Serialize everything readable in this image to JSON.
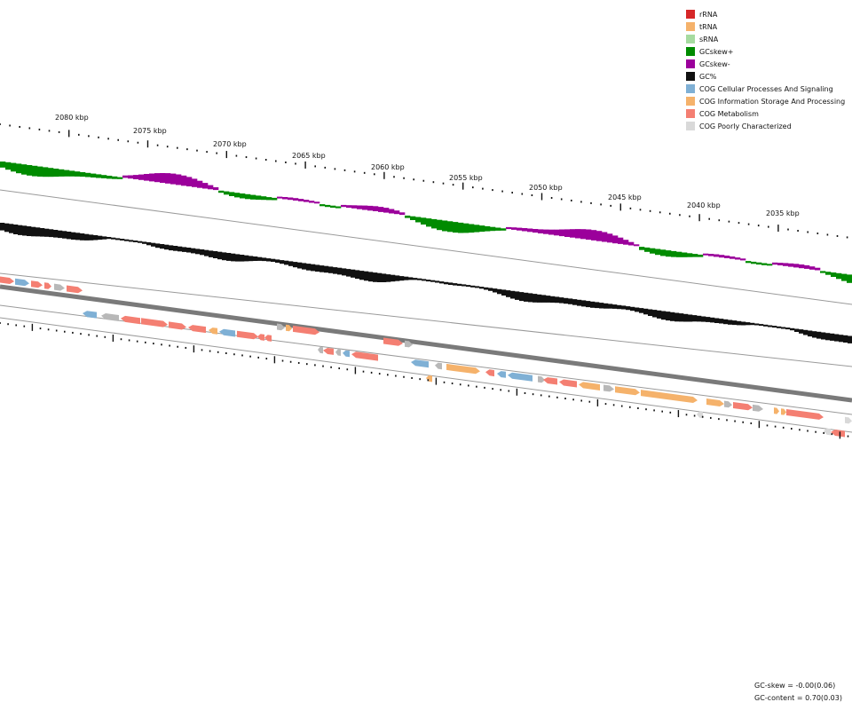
{
  "legend": [
    {
      "label": "rRNA",
      "color": "#d62728"
    },
    {
      "label": "tRNA",
      "color": "#f5b26b"
    },
    {
      "label": "sRNA",
      "color": "#a6dba0"
    },
    {
      "label": "GCskew+",
      "color": "#008b00"
    },
    {
      "label": "GCskew-",
      "color": "#9b009b"
    },
    {
      "label": "GC%",
      "color": "#111111"
    },
    {
      "label": "COG Cellular Processes And Signaling",
      "color": "#7fb0d5"
    },
    {
      "label": "COG Information Storage And Processing",
      "color": "#f5b26b"
    },
    {
      "label": "COG Metabolism",
      "color": "#f47f72"
    },
    {
      "label": "COG Poorly Characterized",
      "color": "#d9d9d9"
    }
  ],
  "ticks": [
    {
      "label": "2080 kbp"
    },
    {
      "label": "2075 kbp"
    },
    {
      "label": "2070 kbp"
    },
    {
      "label": "2065 kbp"
    },
    {
      "label": "2060 kbp"
    },
    {
      "label": "2055 kbp"
    },
    {
      "label": "2050 kbp"
    },
    {
      "label": "2045 kbp"
    },
    {
      "label": "2040 kbp"
    },
    {
      "label": "2035 kbp"
    }
  ],
  "stats": {
    "gc_skew": "GC-skew = -0.00(0.06)",
    "gc_content": "GC-content = 0.70(0.03)"
  },
  "colors": {
    "gc_skew_pos": "#008b00",
    "gc_skew_neg": "#9b009b",
    "gc_content": "#111111",
    "cog_cellular": "#7fb0d5",
    "cog_information": "#f5b26b",
    "cog_metabolism": "#f47f72",
    "cog_poor": "#d9d9d9",
    "backbone": "#7a7a7a",
    "track_line": "#9a9a9a"
  }
}
